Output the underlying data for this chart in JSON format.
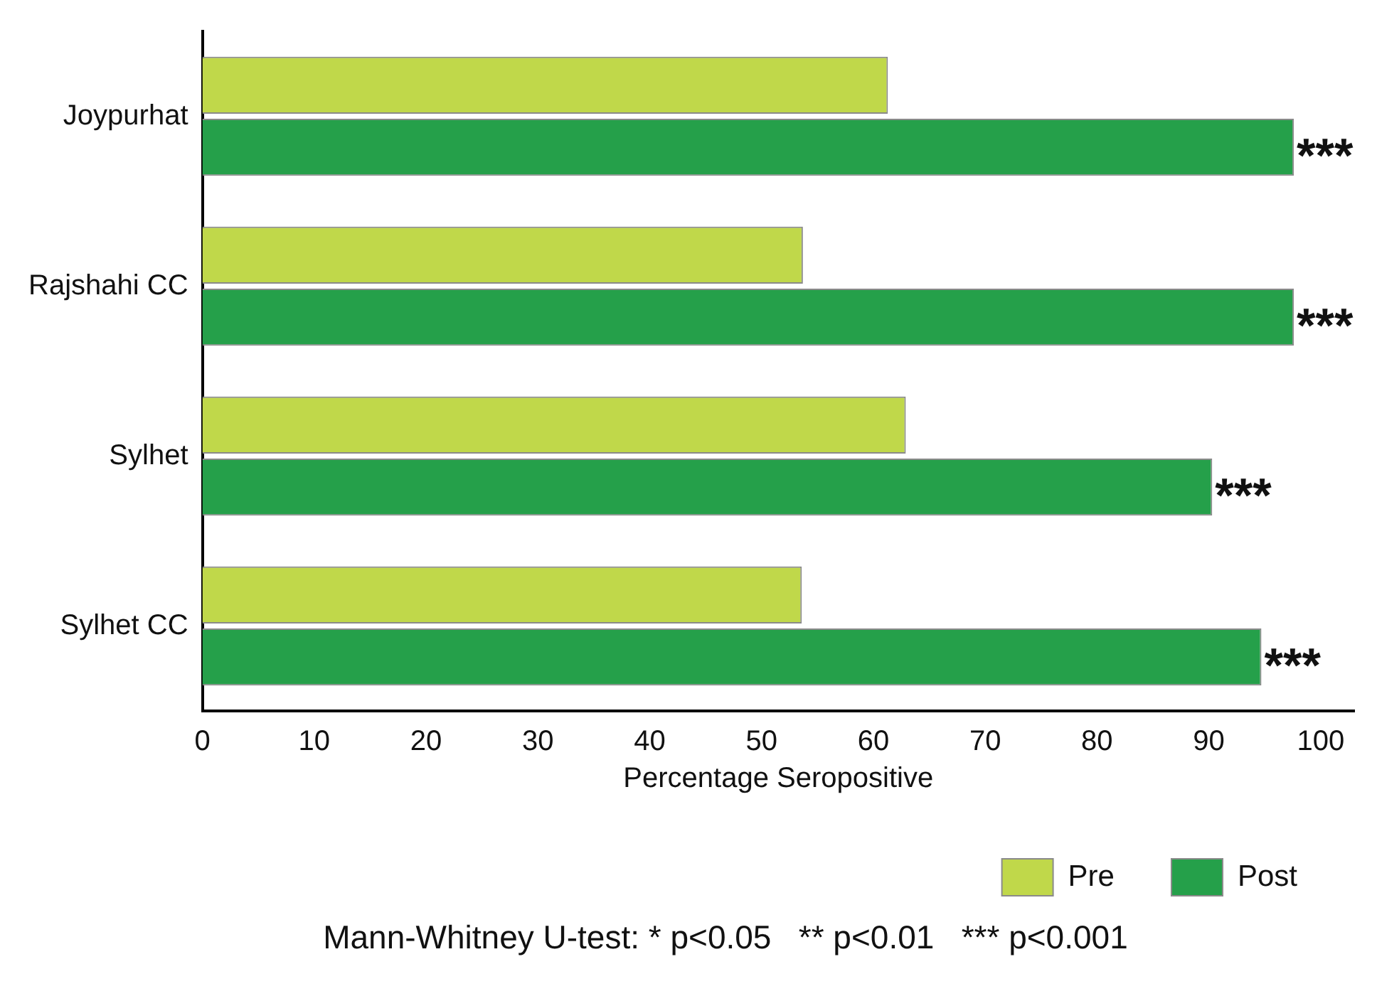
{
  "chart_data": {
    "type": "bar",
    "orientation": "horizontal",
    "xlabel": "Percentage Seropositive",
    "categories": [
      "Joypurhat",
      "Rajshahi CC",
      "Sylhet",
      "Sylhet CC"
    ],
    "series": [
      {
        "name": "Pre",
        "color": "#c0d84a",
        "values": [
          61.3,
          53.7,
          62.9,
          53.6
        ]
      },
      {
        "name": "Post",
        "color": "#25a04a",
        "values": [
          97.6,
          97.6,
          90.3,
          94.7
        ]
      }
    ],
    "xlim": [
      0,
      103
    ],
    "xticks": [
      0,
      10,
      20,
      30,
      40,
      50,
      60,
      70,
      80,
      90,
      100
    ],
    "grid": false,
    "legend": "bottom right",
    "annotations": [
      {
        "text": "***",
        "x": 97.6,
        "y": "Joypurhat"
      },
      {
        "text": "***",
        "x": 97.6,
        "y": "Rajshahi CC"
      },
      {
        "text": "***",
        "x": 90.3,
        "y": "Sylhet"
      },
      {
        "text": "***",
        "x": 94.7,
        "y": "Sylhet CC"
      },
      "Mann-Whitney U-test: * p<0.05   ** p<0.01   *** p<0.001"
    ]
  }
}
